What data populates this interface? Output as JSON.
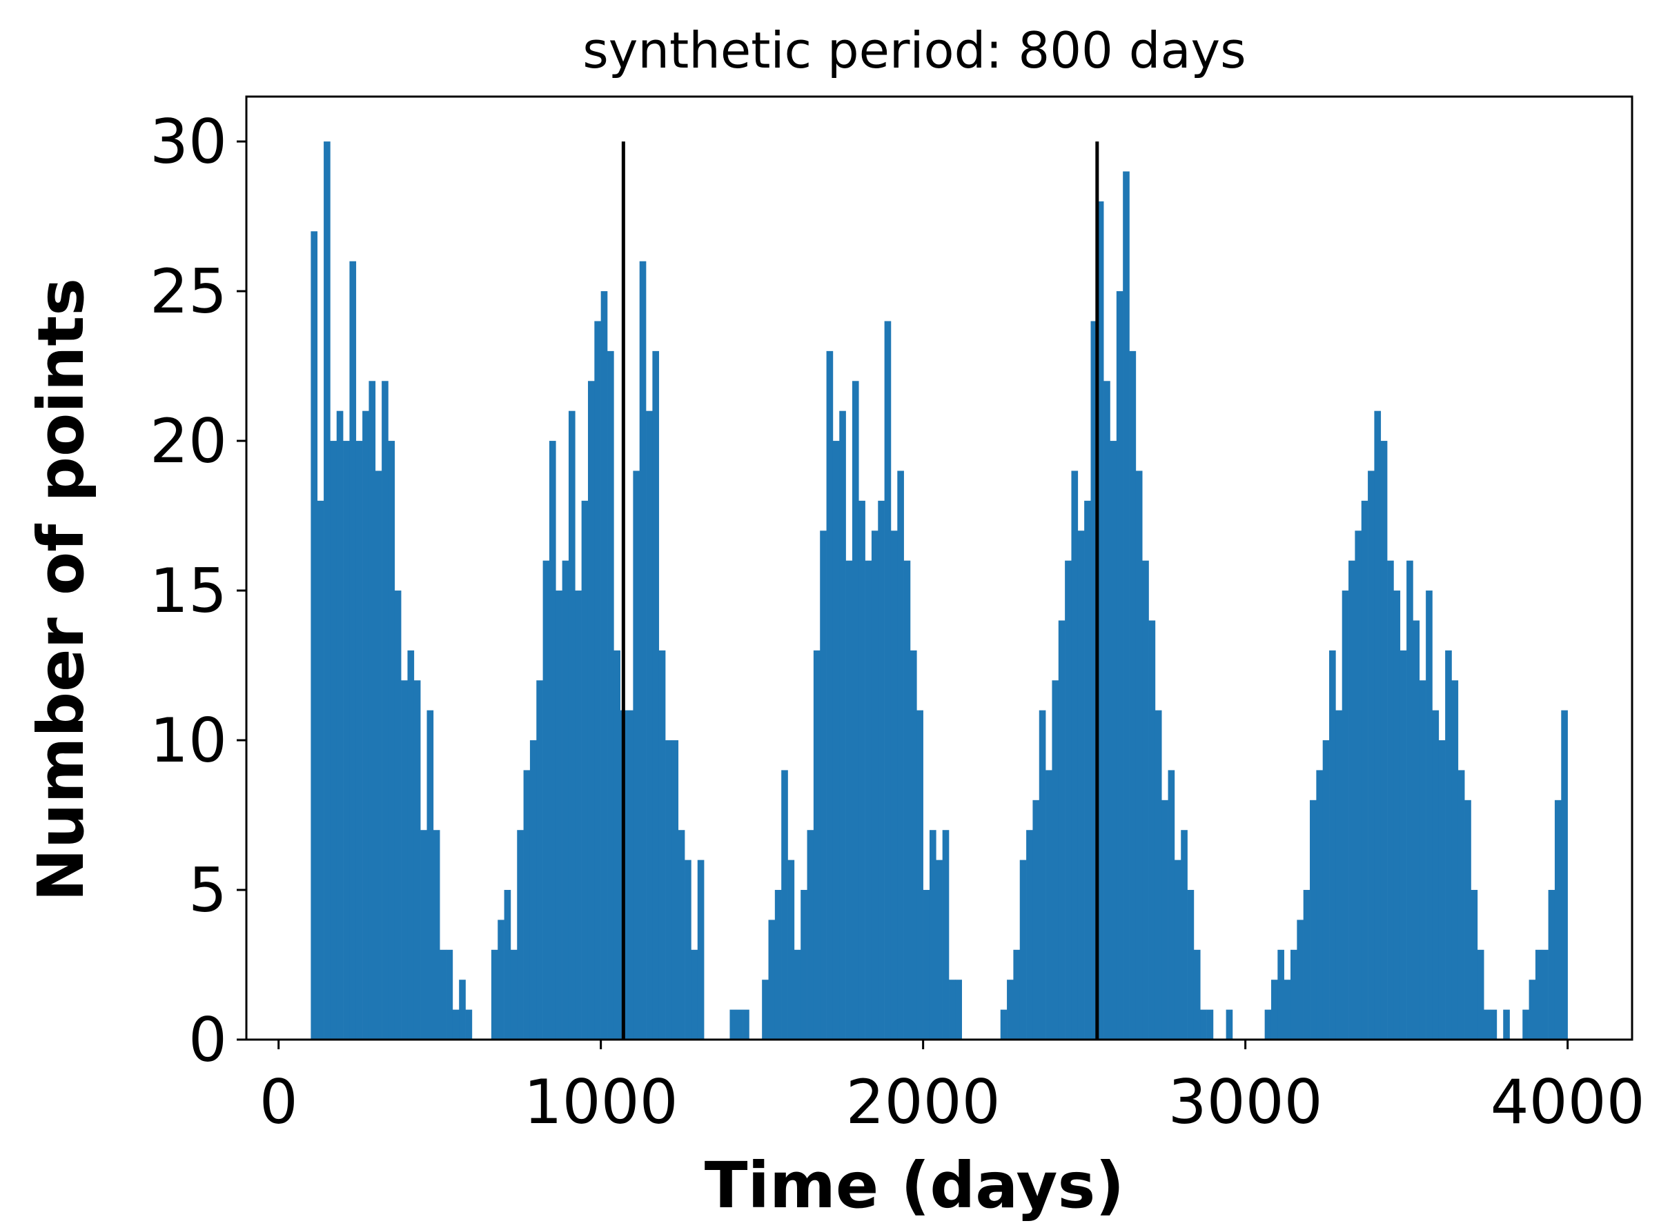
{
  "chart_data": {
    "type": "bar",
    "title": "synthetic period: 800 days",
    "xlabel": "Time (days)",
    "ylabel": "Number of points",
    "xlim": [
      -100,
      4200
    ],
    "ylim": [
      0,
      31.5
    ],
    "xticks": [
      0,
      1000,
      2000,
      3000,
      4000
    ],
    "yticks": [
      0,
      5,
      10,
      15,
      20,
      25,
      30
    ],
    "bin_width": 20,
    "bins": [
      [
        100,
        27
      ],
      [
        120,
        18
      ],
      [
        140,
        30
      ],
      [
        160,
        20
      ],
      [
        180,
        21
      ],
      [
        200,
        20
      ],
      [
        220,
        26
      ],
      [
        240,
        20
      ],
      [
        260,
        21
      ],
      [
        280,
        22
      ],
      [
        300,
        19
      ],
      [
        320,
        22
      ],
      [
        340,
        20
      ],
      [
        360,
        15
      ],
      [
        380,
        12
      ],
      [
        400,
        13
      ],
      [
        420,
        12
      ],
      [
        440,
        7
      ],
      [
        460,
        11
      ],
      [
        480,
        7
      ],
      [
        500,
        3
      ],
      [
        520,
        3
      ],
      [
        540,
        1
      ],
      [
        560,
        2
      ],
      [
        580,
        1
      ],
      [
        660,
        3
      ],
      [
        680,
        4
      ],
      [
        700,
        5
      ],
      [
        720,
        3
      ],
      [
        740,
        7
      ],
      [
        760,
        9
      ],
      [
        780,
        10
      ],
      [
        800,
        12
      ],
      [
        820,
        16
      ],
      [
        840,
        20
      ],
      [
        860,
        15
      ],
      [
        880,
        16
      ],
      [
        900,
        21
      ],
      [
        920,
        15
      ],
      [
        940,
        18
      ],
      [
        960,
        22
      ],
      [
        980,
        24
      ],
      [
        1000,
        25
      ],
      [
        1020,
        23
      ],
      [
        1040,
        13
      ],
      [
        1060,
        11
      ],
      [
        1080,
        11
      ],
      [
        1100,
        19
      ],
      [
        1120,
        26
      ],
      [
        1140,
        21
      ],
      [
        1160,
        23
      ],
      [
        1180,
        13
      ],
      [
        1200,
        10
      ],
      [
        1220,
        10
      ],
      [
        1240,
        7
      ],
      [
        1260,
        6
      ],
      [
        1280,
        3
      ],
      [
        1300,
        6
      ],
      [
        1400,
        1
      ],
      [
        1420,
        1
      ],
      [
        1440,
        1
      ],
      [
        1500,
        2
      ],
      [
        1520,
        4
      ],
      [
        1540,
        5
      ],
      [
        1560,
        9
      ],
      [
        1580,
        6
      ],
      [
        1600,
        3
      ],
      [
        1620,
        5
      ],
      [
        1640,
        7
      ],
      [
        1660,
        13
      ],
      [
        1680,
        17
      ],
      [
        1700,
        23
      ],
      [
        1720,
        20
      ],
      [
        1740,
        21
      ],
      [
        1760,
        16
      ],
      [
        1780,
        22
      ],
      [
        1800,
        18
      ],
      [
        1820,
        16
      ],
      [
        1840,
        17
      ],
      [
        1860,
        18
      ],
      [
        1880,
        24
      ],
      [
        1900,
        17
      ],
      [
        1920,
        19
      ],
      [
        1940,
        16
      ],
      [
        1960,
        13
      ],
      [
        1980,
        11
      ],
      [
        2000,
        5
      ],
      [
        2020,
        7
      ],
      [
        2040,
        6
      ],
      [
        2060,
        7
      ],
      [
        2080,
        2
      ],
      [
        2100,
        2
      ],
      [
        2240,
        1
      ],
      [
        2260,
        2
      ],
      [
        2280,
        3
      ],
      [
        2300,
        6
      ],
      [
        2320,
        7
      ],
      [
        2340,
        8
      ],
      [
        2360,
        11
      ],
      [
        2380,
        9
      ],
      [
        2400,
        12
      ],
      [
        2420,
        14
      ],
      [
        2440,
        16
      ],
      [
        2460,
        19
      ],
      [
        2480,
        17
      ],
      [
        2500,
        18
      ],
      [
        2520,
        24
      ],
      [
        2540,
        28
      ],
      [
        2560,
        22
      ],
      [
        2580,
        20
      ],
      [
        2600,
        25
      ],
      [
        2620,
        29
      ],
      [
        2640,
        23
      ],
      [
        2660,
        19
      ],
      [
        2680,
        16
      ],
      [
        2700,
        14
      ],
      [
        2720,
        11
      ],
      [
        2740,
        8
      ],
      [
        2760,
        9
      ],
      [
        2780,
        6
      ],
      [
        2800,
        7
      ],
      [
        2820,
        5
      ],
      [
        2840,
        3
      ],
      [
        2860,
        1
      ],
      [
        2880,
        1
      ],
      [
        2940,
        1
      ],
      [
        3060,
        1
      ],
      [
        3080,
        2
      ],
      [
        3100,
        3
      ],
      [
        3120,
        2
      ],
      [
        3140,
        3
      ],
      [
        3160,
        4
      ],
      [
        3180,
        5
      ],
      [
        3200,
        8
      ],
      [
        3220,
        9
      ],
      [
        3240,
        10
      ],
      [
        3260,
        13
      ],
      [
        3280,
        11
      ],
      [
        3300,
        15
      ],
      [
        3320,
        16
      ],
      [
        3340,
        17
      ],
      [
        3360,
        18
      ],
      [
        3380,
        19
      ],
      [
        3400,
        21
      ],
      [
        3420,
        20
      ],
      [
        3440,
        16
      ],
      [
        3460,
        15
      ],
      [
        3480,
        13
      ],
      [
        3500,
        16
      ],
      [
        3520,
        14
      ],
      [
        3540,
        12
      ],
      [
        3560,
        15
      ],
      [
        3580,
        11
      ],
      [
        3600,
        10
      ],
      [
        3620,
        13
      ],
      [
        3640,
        12
      ],
      [
        3660,
        9
      ],
      [
        3680,
        8
      ],
      [
        3700,
        5
      ],
      [
        3720,
        3
      ],
      [
        3740,
        1
      ],
      [
        3760,
        1
      ],
      [
        3800,
        1
      ],
      [
        3860,
        1
      ],
      [
        3880,
        2
      ],
      [
        3900,
        3
      ],
      [
        3920,
        3
      ],
      [
        3940,
        5
      ],
      [
        3960,
        8
      ],
      [
        3980,
        11
      ]
    ],
    "vlines": [
      1070,
      2540
    ],
    "bar_color": "#1f77b4",
    "vline_color": "#000000",
    "grid": false
  }
}
